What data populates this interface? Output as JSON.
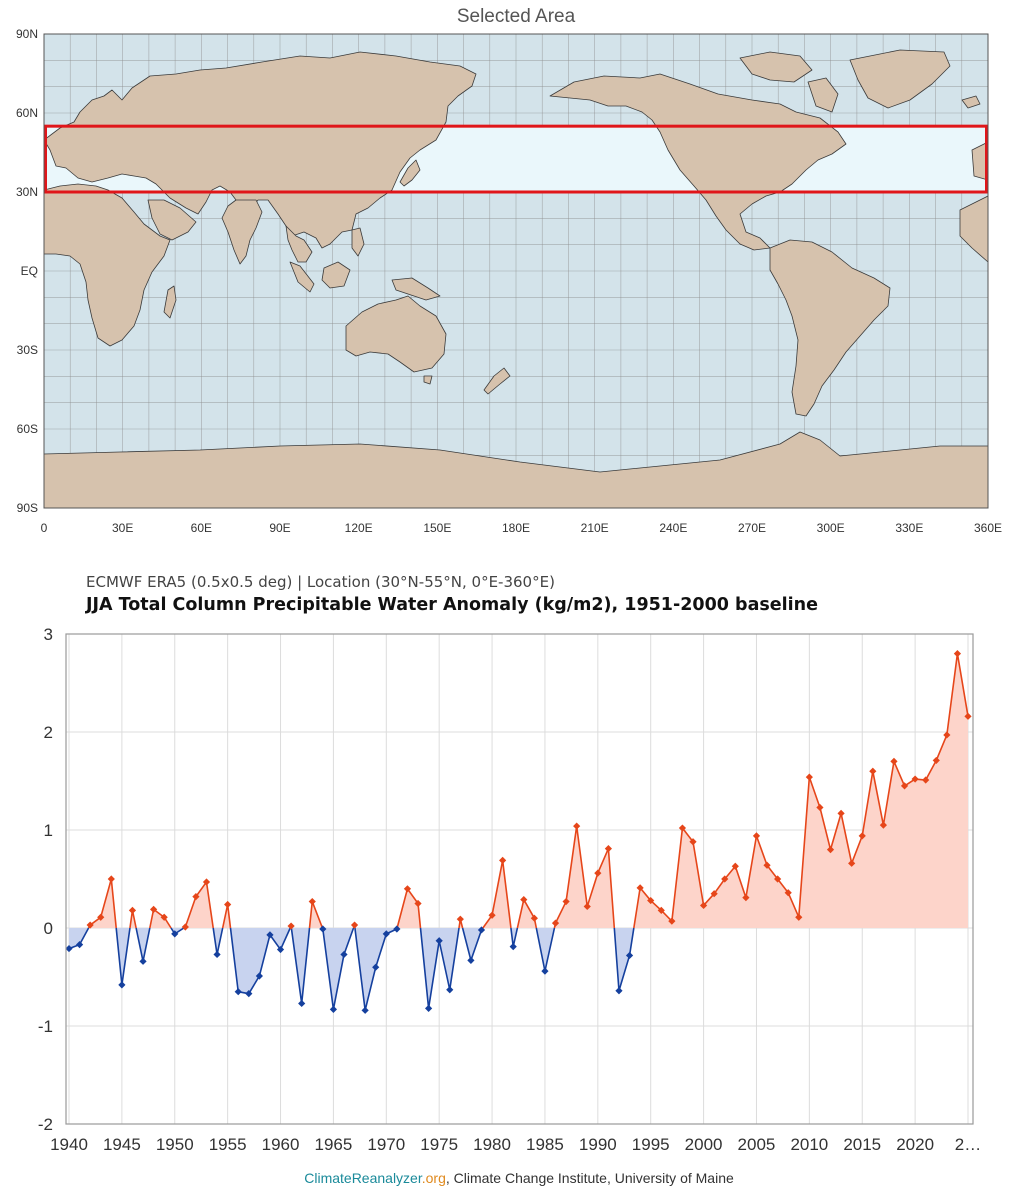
{
  "map": {
    "title": "Selected Area",
    "lat_labels": [
      "90N",
      "60N",
      "30N",
      "EQ",
      "30S",
      "60S",
      "90S"
    ],
    "lon_labels": [
      "0",
      "30E",
      "60E",
      "90E",
      "120E",
      "150E",
      "180E",
      "210E",
      "240E",
      "270E",
      "300E",
      "330E",
      "360E"
    ],
    "selection": {
      "lat_min": 30,
      "lat_max": 55,
      "lon_min": 0,
      "lon_max": 360
    },
    "colors": {
      "ocean": "#d3e3ea",
      "land": "#d6c2ad",
      "selection_fill": "#eaf7fb",
      "selection_border": "#e0161a"
    }
  },
  "chart": {
    "subtitle": "ECMWF ERA5 (0.5x0.5 deg) | Location (30°N-55°N, 0°E-360°E)",
    "title": "JJA Total Column Precipitable Water Anomaly (kg/m2), 1951-2000 baseline"
  },
  "chart_data": {
    "type": "line",
    "x": [
      1940,
      1941,
      1942,
      1943,
      1944,
      1945,
      1946,
      1947,
      1948,
      1949,
      1950,
      1951,
      1952,
      1953,
      1954,
      1955,
      1956,
      1957,
      1958,
      1959,
      1960,
      1961,
      1962,
      1963,
      1964,
      1965,
      1966,
      1967,
      1968,
      1969,
      1970,
      1971,
      1972,
      1973,
      1974,
      1975,
      1976,
      1977,
      1978,
      1979,
      1980,
      1981,
      1982,
      1983,
      1984,
      1985,
      1986,
      1987,
      1988,
      1989,
      1990,
      1991,
      1992,
      1993,
      1994,
      1995,
      1996,
      1997,
      1998,
      1999,
      2000,
      2001,
      2002,
      2003,
      2004,
      2005,
      2006,
      2007,
      2008,
      2009,
      2010,
      2011,
      2012,
      2013,
      2014,
      2015,
      2016,
      2017,
      2018,
      2019,
      2020,
      2021,
      2022,
      2023,
      2024,
      2025
    ],
    "values": [
      -0.21,
      -0.17,
      0.03,
      0.11,
      0.5,
      -0.58,
      0.18,
      -0.34,
      0.19,
      0.11,
      -0.06,
      0.01,
      0.32,
      0.47,
      -0.27,
      0.24,
      -0.65,
      -0.67,
      -0.49,
      -0.07,
      -0.22,
      0.02,
      -0.77,
      0.27,
      -0.01,
      -0.83,
      -0.27,
      0.03,
      -0.84,
      -0.4,
      -0.06,
      -0.01,
      0.4,
      0.25,
      -0.82,
      -0.13,
      -0.63,
      0.09,
      -0.33,
      -0.02,
      0.13,
      0.69,
      -0.19,
      0.29,
      0.1,
      -0.44,
      0.05,
      0.27,
      1.04,
      0.22,
      0.56,
      0.81,
      -0.64,
      -0.28,
      0.41,
      0.28,
      0.18,
      0.07,
      1.02,
      0.88,
      0.23,
      0.35,
      0.5,
      0.63,
      0.31,
      0.94,
      0.64,
      0.5,
      0.36,
      0.11,
      1.54,
      1.23,
      0.8,
      1.17,
      0.66,
      0.94,
      1.6,
      1.05,
      1.7,
      1.45,
      1.52,
      1.51,
      1.71,
      1.97,
      2.8,
      2.16
    ],
    "x_tick_labels": [
      "1940",
      "1945",
      "1950",
      "1955",
      "1960",
      "1965",
      "1970",
      "1975",
      "1980",
      "1985",
      "1990",
      "1995",
      "2000",
      "2005",
      "2010",
      "2015",
      "2020",
      "2…"
    ],
    "y_tick_labels": [
      "3",
      "2",
      "1",
      "0",
      "-1",
      "-2"
    ],
    "ylim": [
      -2,
      3
    ],
    "xlim": [
      1940,
      2025
    ],
    "grid": true,
    "colors": {
      "positive_line": "#e6461a",
      "positive_fill": "#fdd4ca",
      "negative_line": "#15409e",
      "negative_fill": "#c8d3ef"
    }
  },
  "credit": {
    "site_a": "ClimateReanalyzer",
    "site_b": ".org",
    "rest": ", Climate Change Institute, University of Maine"
  }
}
